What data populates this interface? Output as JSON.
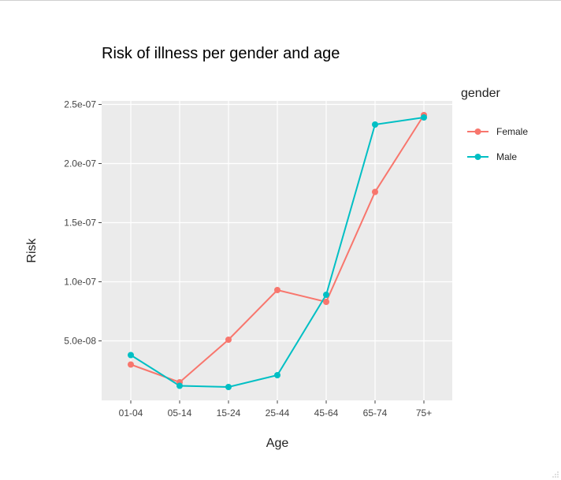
{
  "chart_data": {
    "type": "line",
    "title": "Risk of illness per gender and age",
    "xlabel": "Age",
    "ylabel": "Risk",
    "categories": [
      "01-04",
      "05-14",
      "15-24",
      "25-44",
      "45-64",
      "65-74",
      "75+"
    ],
    "ylim": [
      0,
      2.5e-07
    ],
    "yticks": [
      5e-08,
      1e-07,
      1.5e-07,
      2e-07,
      2.5e-07
    ],
    "ytick_labels": [
      "5.0e-08",
      "1.0e-07",
      "1.5e-07",
      "2.0e-07",
      "2.5e-07"
    ],
    "legend": {
      "title": "gender",
      "position": "right"
    },
    "grid": true,
    "series": [
      {
        "name": "Female",
        "color": "#F8766D",
        "values": [
          3e-08,
          1.5e-08,
          5.1e-08,
          9.3e-08,
          8.3e-08,
          1.76e-07,
          2.41e-07
        ]
      },
      {
        "name": "Male",
        "color": "#00BFC4",
        "values": [
          3.8e-08,
          1.2e-08,
          1.1e-08,
          2.1e-08,
          8.9e-08,
          2.33e-07,
          2.39e-07
        ]
      }
    ]
  }
}
